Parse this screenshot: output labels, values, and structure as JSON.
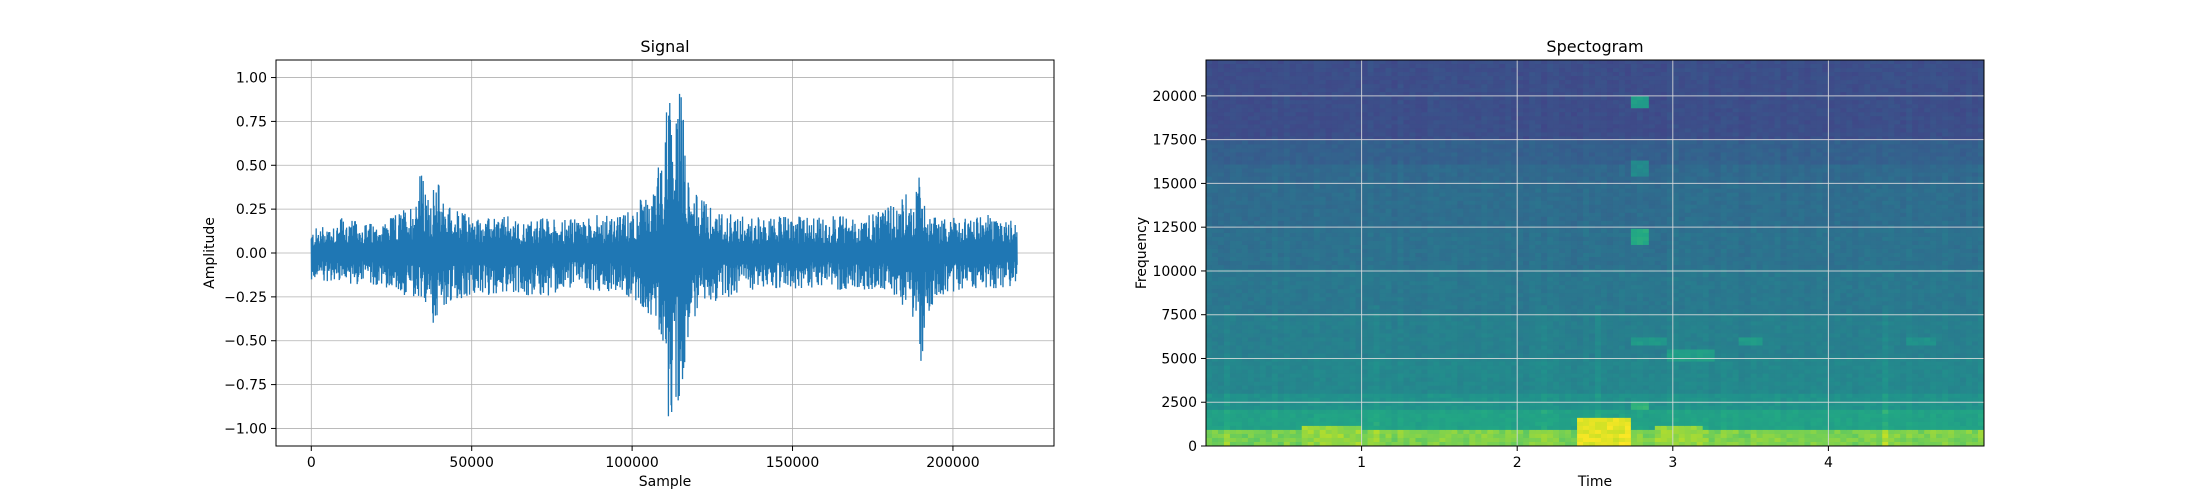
{
  "chart_data": [
    {
      "type": "line",
      "title": "Signal",
      "xlabel": "Sample",
      "ylabel": "Amplitude",
      "xlim": [
        -11000,
        231500
      ],
      "ylim": [
        -1.1,
        1.1
      ],
      "xticks": [
        0,
        50000,
        100000,
        150000,
        200000
      ],
      "xtick_labels": [
        "0",
        "50000",
        "100000",
        "150000",
        "200000"
      ],
      "yticks": [
        -1.0,
        -0.75,
        -0.5,
        -0.25,
        0.0,
        0.25,
        0.5,
        0.75,
        1.0
      ],
      "ytick_labels": [
        "−1.00",
        "−0.75",
        "−0.50",
        "−0.25",
        "0.00",
        "0.25",
        "0.50",
        "0.75",
        "1.00"
      ],
      "grid": true,
      "color": "#1f77b4",
      "series": [
        {
          "x": [
            0,
            5000,
            10000,
            15000,
            20000,
            25000,
            30000,
            32000,
            34000,
            36000,
            38000,
            40000,
            42000,
            45000,
            50000,
            55000,
            60000,
            65000,
            70000,
            75000,
            80000,
            85000,
            90000,
            95000,
            100000,
            103000,
            106000,
            108000,
            110000,
            111000,
            112000,
            113000,
            114000,
            115000,
            116000,
            117000,
            118000,
            120000,
            123000,
            126000,
            130000,
            135000,
            140000,
            145000,
            150000,
            155000,
            160000,
            165000,
            170000,
            175000,
            180000,
            183000,
            186000,
            188000,
            189000,
            190000,
            191000,
            192000,
            194000,
            197000,
            200000,
            205000,
            210000,
            215000,
            220000
          ],
          "y_max": [
            0.13,
            0.18,
            0.2,
            0.18,
            0.17,
            0.2,
            0.28,
            0.3,
            0.5,
            0.32,
            0.37,
            0.42,
            0.3,
            0.25,
            0.22,
            0.2,
            0.22,
            0.18,
            0.2,
            0.21,
            0.19,
            0.2,
            0.22,
            0.2,
            0.26,
            0.32,
            0.3,
            0.5,
            0.6,
            0.94,
            0.95,
            0.7,
            0.85,
            1.0,
            0.78,
            0.55,
            0.4,
            0.35,
            0.28,
            0.25,
            0.22,
            0.22,
            0.2,
            0.21,
            0.2,
            0.22,
            0.2,
            0.23,
            0.2,
            0.22,
            0.26,
            0.3,
            0.36,
            0.25,
            0.46,
            0.44,
            0.32,
            0.25,
            0.22,
            0.2,
            0.2,
            0.2,
            0.22,
            0.2,
            0.2
          ],
          "y_min": [
            -0.15,
            -0.16,
            -0.17,
            -0.18,
            -0.19,
            -0.2,
            -0.26,
            -0.28,
            -0.3,
            -0.31,
            -0.4,
            -0.35,
            -0.32,
            -0.28,
            -0.25,
            -0.24,
            -0.22,
            -0.23,
            -0.25,
            -0.24,
            -0.2,
            -0.2,
            -0.22,
            -0.24,
            -0.25,
            -0.3,
            -0.38,
            -0.42,
            -0.55,
            -1.0,
            -0.97,
            -0.8,
            -0.88,
            -0.85,
            -0.7,
            -0.5,
            -0.45,
            -0.35,
            -0.3,
            -0.28,
            -0.25,
            -0.22,
            -0.2,
            -0.2,
            -0.2,
            -0.21,
            -0.2,
            -0.21,
            -0.2,
            -0.22,
            -0.25,
            -0.3,
            -0.35,
            -0.45,
            -0.6,
            -0.72,
            -0.45,
            -0.35,
            -0.28,
            -0.25,
            -0.22,
            -0.2,
            -0.2,
            -0.2,
            -0.18
          ]
        }
      ]
    },
    {
      "type": "heatmap",
      "title": "Spectogram",
      "xlabel": "Time",
      "ylabel": "Frequency",
      "xlim": [
        0.0,
        5.0
      ],
      "ylim": [
        0,
        22050
      ],
      "xticks": [
        1,
        2,
        3,
        4
      ],
      "xtick_labels": [
        "1",
        "2",
        "3",
        "4"
      ],
      "yticks": [
        0,
        2500,
        5000,
        7500,
        10000,
        12500,
        15000,
        17500,
        20000
      ],
      "ytick_labels": [
        "0",
        "2500",
        "5000",
        "7500",
        "10000",
        "12500",
        "15000",
        "17500",
        "20000"
      ],
      "grid": true,
      "colormap": "viridis",
      "frequency_bands": [
        {
          "from": 0,
          "to": 1000,
          "level": 0.88
        },
        {
          "from": 1000,
          "to": 2000,
          "level": 0.72
        },
        {
          "from": 2000,
          "to": 3000,
          "level": 0.64
        },
        {
          "from": 3000,
          "to": 5000,
          "level": 0.58
        },
        {
          "from": 5000,
          "to": 7500,
          "level": 0.54
        },
        {
          "from": 7500,
          "to": 10000,
          "level": 0.5
        },
        {
          "from": 10000,
          "to": 12500,
          "level": 0.47
        },
        {
          "from": 12500,
          "to": 15000,
          "level": 0.45
        },
        {
          "from": 15000,
          "to": 16000,
          "level": 0.43
        },
        {
          "from": 16000,
          "to": 17500,
          "level": 0.39
        },
        {
          "from": 17500,
          "to": 22050,
          "level": 0.3
        }
      ],
      "highlights": [
        {
          "t": 2.55,
          "t_width": 0.35,
          "f_from": 0,
          "f_to": 1500,
          "level": 1.0
        },
        {
          "t": 0.8,
          "t_width": 0.4,
          "f_from": 0,
          "f_to": 1200,
          "level": 0.93
        },
        {
          "t": 3.05,
          "t_width": 0.3,
          "f_from": 0,
          "f_to": 1200,
          "level": 0.93
        },
        {
          "t": 2.8,
          "t_width": 0.12,
          "f_from": 11500,
          "f_to": 12500,
          "level": 0.78
        },
        {
          "t": 2.8,
          "t_width": 0.1,
          "f_from": 19300,
          "f_to": 20000,
          "level": 0.72
        },
        {
          "t": 2.8,
          "t_width": 0.12,
          "f_from": 15500,
          "f_to": 16200,
          "level": 0.62
        },
        {
          "t": 2.85,
          "t_width": 0.25,
          "f_from": 5700,
          "f_to": 6300,
          "level": 0.7
        },
        {
          "t": 3.1,
          "t_width": 0.3,
          "f_from": 4800,
          "f_to": 5400,
          "level": 0.72
        },
        {
          "t": 3.5,
          "t_width": 0.15,
          "f_from": 5800,
          "f_to": 6300,
          "level": 0.7
        },
        {
          "t": 4.6,
          "t_width": 0.2,
          "f_from": 5800,
          "f_to": 6300,
          "level": 0.66
        },
        {
          "t": 2.8,
          "t_width": 0.1,
          "f_from": 2000,
          "f_to": 2600,
          "level": 0.8
        }
      ]
    }
  ]
}
